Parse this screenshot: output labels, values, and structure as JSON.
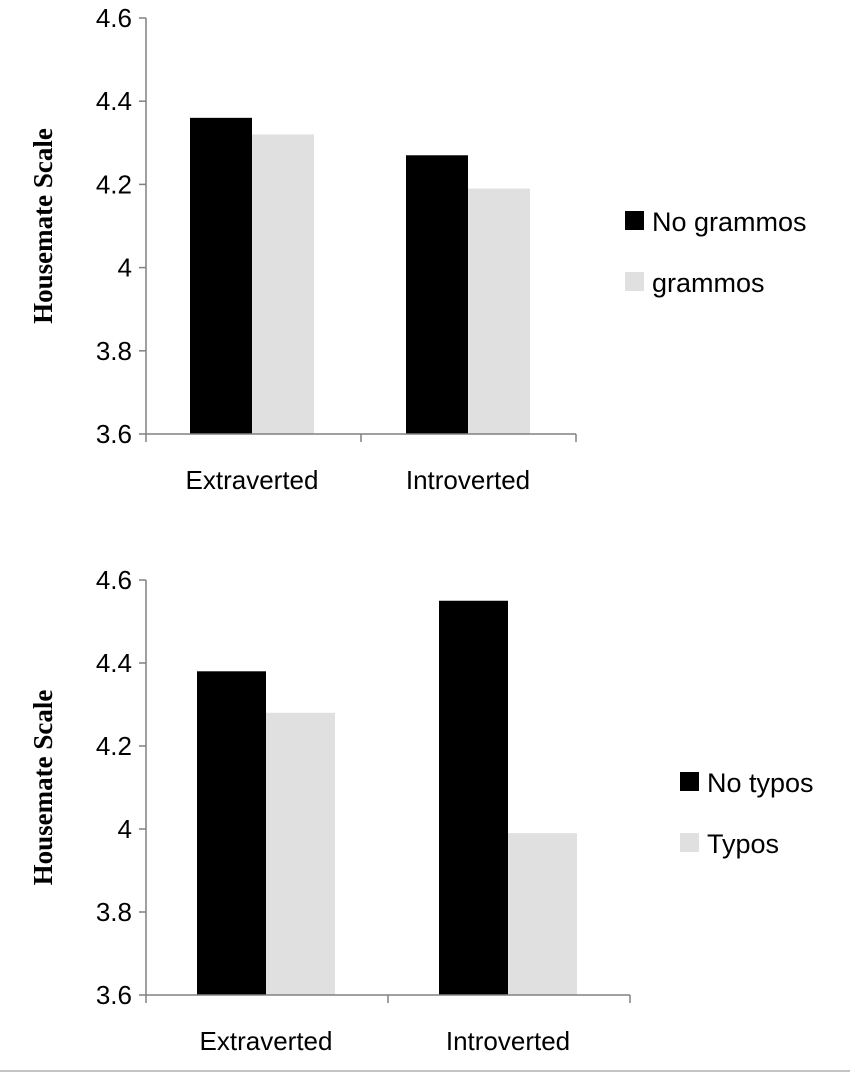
{
  "chart_data": [
    {
      "type": "bar",
      "categories": [
        "Extraverted",
        "Introverted"
      ],
      "series": [
        {
          "name": "No grammos",
          "values": [
            4.36,
            4.27
          ],
          "color": "#000000"
        },
        {
          "name": "grammos",
          "values": [
            4.32,
            4.19
          ],
          "color": "#e0e0e0"
        }
      ],
      "title": "",
      "xlabel": "",
      "ylabel": "Housemate Scale",
      "ylim": [
        3.6,
        4.6
      ],
      "yticks": [
        "3.6",
        "3.8",
        "4",
        "4.2",
        "4.4",
        "4.6"
      ],
      "grid": false,
      "legend": "right"
    },
    {
      "type": "bar",
      "categories": [
        "Extraverted",
        "Introverted"
      ],
      "series": [
        {
          "name": "No typos",
          "values": [
            4.38,
            4.55
          ],
          "color": "#000000"
        },
        {
          "name": "Typos",
          "values": [
            4.28,
            3.99
          ],
          "color": "#e0e0e0"
        }
      ],
      "title": "",
      "xlabel": "",
      "ylabel": "Housemate Scale",
      "ylim": [
        3.6,
        4.6
      ],
      "yticks": [
        "3.6",
        "3.8",
        "4",
        "4.2",
        "4.4",
        "4.6"
      ],
      "grid": false,
      "legend": "right"
    }
  ]
}
